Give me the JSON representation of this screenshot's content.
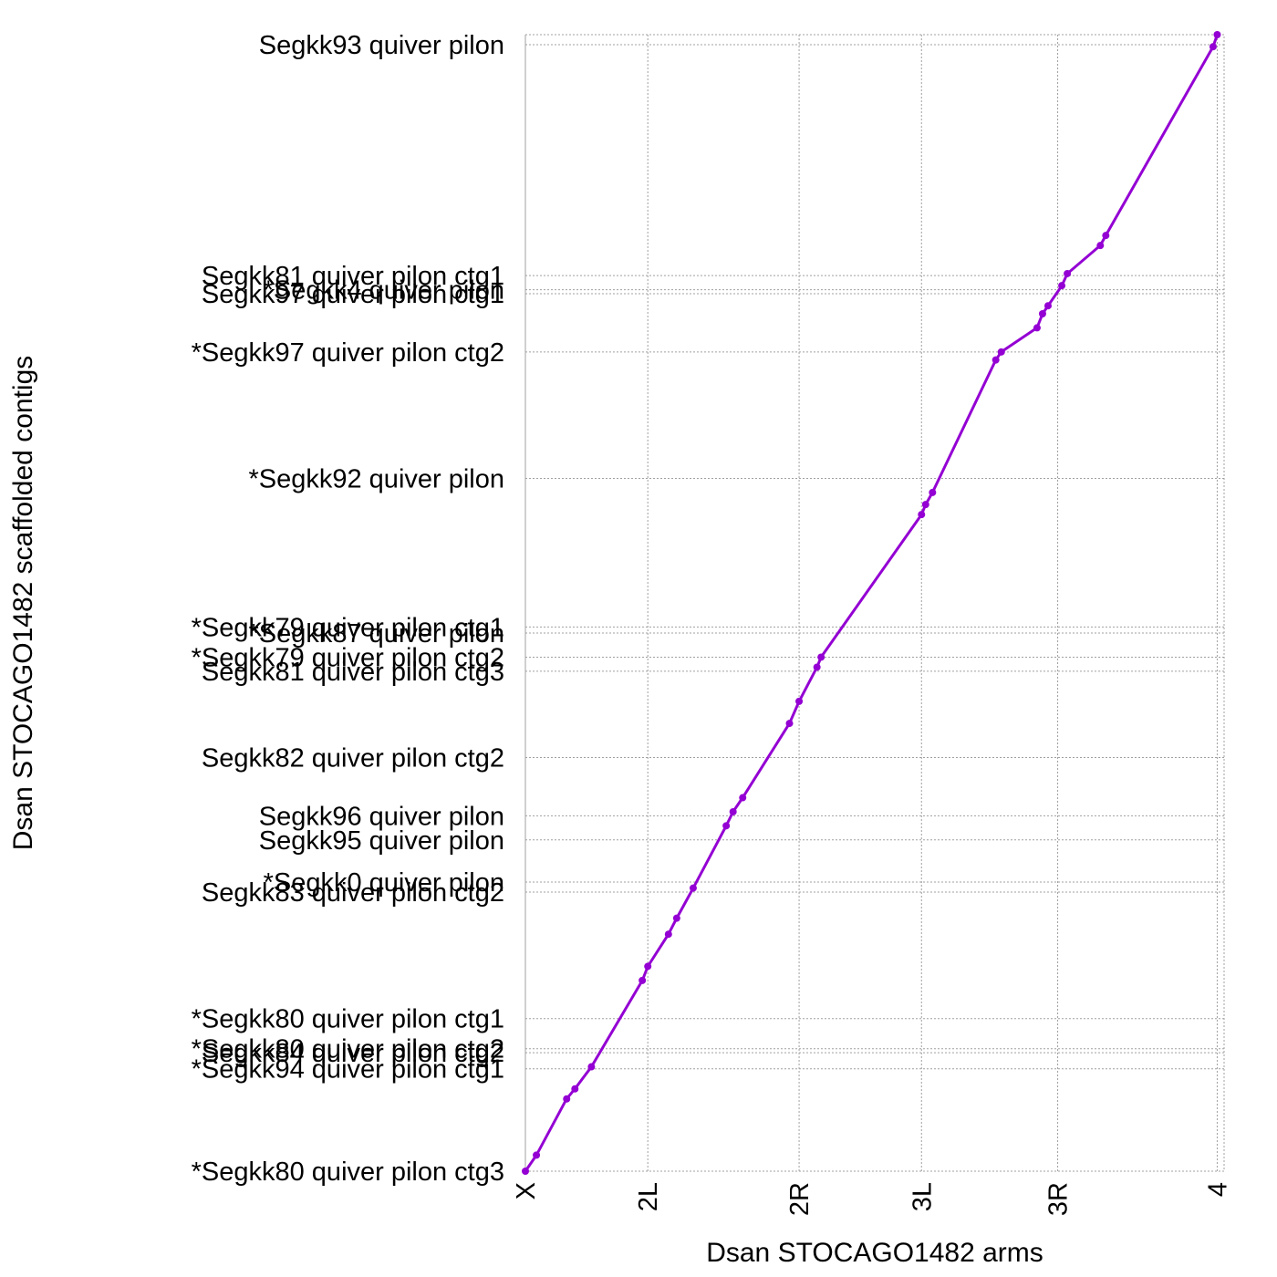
{
  "chart_data": {
    "type": "line",
    "xlabel": "Dsan STOCAGO1482 arms",
    "ylabel": "Dsan STOCAGO1482 scaffolded contigs",
    "x_ticks": [
      {
        "label": "X",
        "value": 0
      },
      {
        "label": "2L",
        "value": 4.45
      },
      {
        "label": "2R",
        "value": 9.95
      },
      {
        "label": "3L",
        "value": 14.4
      },
      {
        "label": "3R",
        "value": 19.35
      },
      {
        "label": "4",
        "value": 25.15
      }
    ],
    "y_ticks": [
      {
        "label": "*Segkk80 quiver pilon ctg3",
        "value": 0
      },
      {
        "label": "*Segkk94 quiver pilon ctg1",
        "value": 2.55
      },
      {
        "label": "Segkk84 quiver pilon ctg2",
        "value": 2.95
      },
      {
        "label": "*Segkk80 quiver pilon ctg2",
        "value": 3.05
      },
      {
        "label": "*Segkk80 quiver pilon ctg1",
        "value": 3.8
      },
      {
        "label": "Segkk83 quiver pilon ctg2",
        "value": 6.95
      },
      {
        "label": "*Segkk0 quiver pilon",
        "value": 7.2
      },
      {
        "label": "Segkk95 quiver pilon",
        "value": 8.25
      },
      {
        "label": "Segkk96 quiver pilon",
        "value": 8.85
      },
      {
        "label": "Segkk82 quiver pilon ctg2",
        "value": 10.3
      },
      {
        "label": "Segkk81 quiver pilon ctg3",
        "value": 12.45
      },
      {
        "label": "*Segkk79 quiver pilon ctg2",
        "value": 12.8
      },
      {
        "label": "*Segkk87 quiver pilon",
        "value": 13.4
      },
      {
        "label": "*Segkk79 quiver pilon ctg1",
        "value": 13.55
      },
      {
        "label": "*Segkk92 quiver pilon",
        "value": 17.25
      },
      {
        "label": "*Segkk97 quiver pilon ctg2",
        "value": 20.4
      },
      {
        "label": "Segkk97 quiver pilon ctg1",
        "value": 21.85
      },
      {
        "label": "*Segkk4 quiver pilon",
        "value": 21.95
      },
      {
        "label": "Segkk81 quiver pilon ctg1",
        "value": 22.3
      },
      {
        "label": "Segkk93 quiver pilon",
        "value": 28.05
      }
    ],
    "xlim": [
      0,
      25.4
    ],
    "ylim": [
      0,
      28.3
    ],
    "grid": true,
    "series": [
      {
        "color": "#9400d3",
        "x": [
          0,
          0.4,
          1.5,
          1.8,
          2.4,
          4.25,
          4.45,
          5.2,
          5.5,
          6.1,
          7.3,
          7.55,
          7.9,
          9.6,
          9.95,
          10.6,
          10.75,
          14.4,
          14.55,
          14.8,
          17.1,
          17.3,
          18.6,
          18.8,
          19.0,
          19.5,
          19.7,
          20.9,
          21.1,
          25.0,
          25.15
        ],
        "y": [
          0,
          0.4,
          1.8,
          2.05,
          2.6,
          4.75,
          5.1,
          5.9,
          6.3,
          7.05,
          8.6,
          8.95,
          9.3,
          11.15,
          11.7,
          12.55,
          12.8,
          16.35,
          16.6,
          16.9,
          20.2,
          20.4,
          21.0,
          21.35,
          21.55,
          22.05,
          22.35,
          23.05,
          23.3,
          28.0,
          28.3
        ]
      }
    ]
  }
}
